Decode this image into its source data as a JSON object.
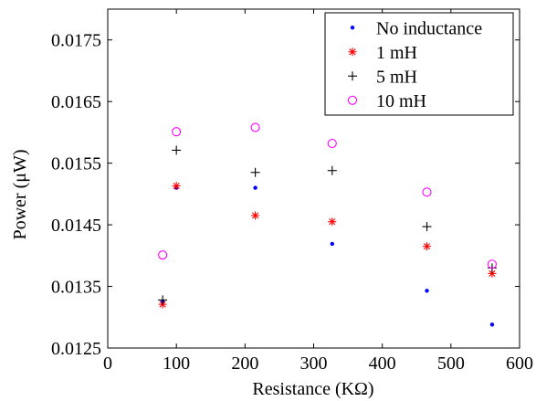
{
  "chart_data": {
    "type": "scatter",
    "title": "",
    "xlabel": "Resistance (KΩ)",
    "ylabel": "Power (μW)",
    "xlim": [
      0,
      600
    ],
    "ylim": [
      0.0125,
      0.018
    ],
    "xticks": [
      0,
      100,
      200,
      300,
      400,
      500,
      600
    ],
    "xtick_labels": [
      "0",
      "100",
      "200",
      "300",
      "400",
      "500",
      "600"
    ],
    "yticks": [
      0.0125,
      0.0135,
      0.0145,
      0.0155,
      0.0165,
      0.0175
    ],
    "ytick_labels": [
      "0.0125",
      "0.0135",
      "0.0145",
      "0.0155",
      "0.0165",
      "0.0175"
    ],
    "grid": false,
    "legend_position": "top-right",
    "series": [
      {
        "name": "No inductance",
        "marker": "dot",
        "color": "#0000ff",
        "x": [
          80,
          100,
          215,
          327,
          465,
          560
        ],
        "y": [
          0.01325,
          0.0151,
          0.0151,
          0.01419,
          0.01343,
          0.01288
        ]
      },
      {
        "name": "1 mH",
        "marker": "asterisk",
        "color": "#ff0000",
        "x": [
          80,
          100,
          215,
          327,
          465,
          560
        ],
        "y": [
          0.01321,
          0.01513,
          0.01465,
          0.01455,
          0.01415,
          0.01371
        ]
      },
      {
        "name": "5 mH",
        "marker": "plus",
        "color": "#000000",
        "x": [
          80,
          100,
          215,
          327,
          465,
          560
        ],
        "y": [
          0.01328,
          0.01571,
          0.01535,
          0.01538,
          0.01447,
          0.0138
        ]
      },
      {
        "name": "10 mH",
        "marker": "circle",
        "color": "#ff00ff",
        "x": [
          80,
          100,
          215,
          327,
          465,
          560
        ],
        "y": [
          0.01401,
          0.01601,
          0.01608,
          0.01582,
          0.01503,
          0.01386
        ]
      }
    ]
  }
}
